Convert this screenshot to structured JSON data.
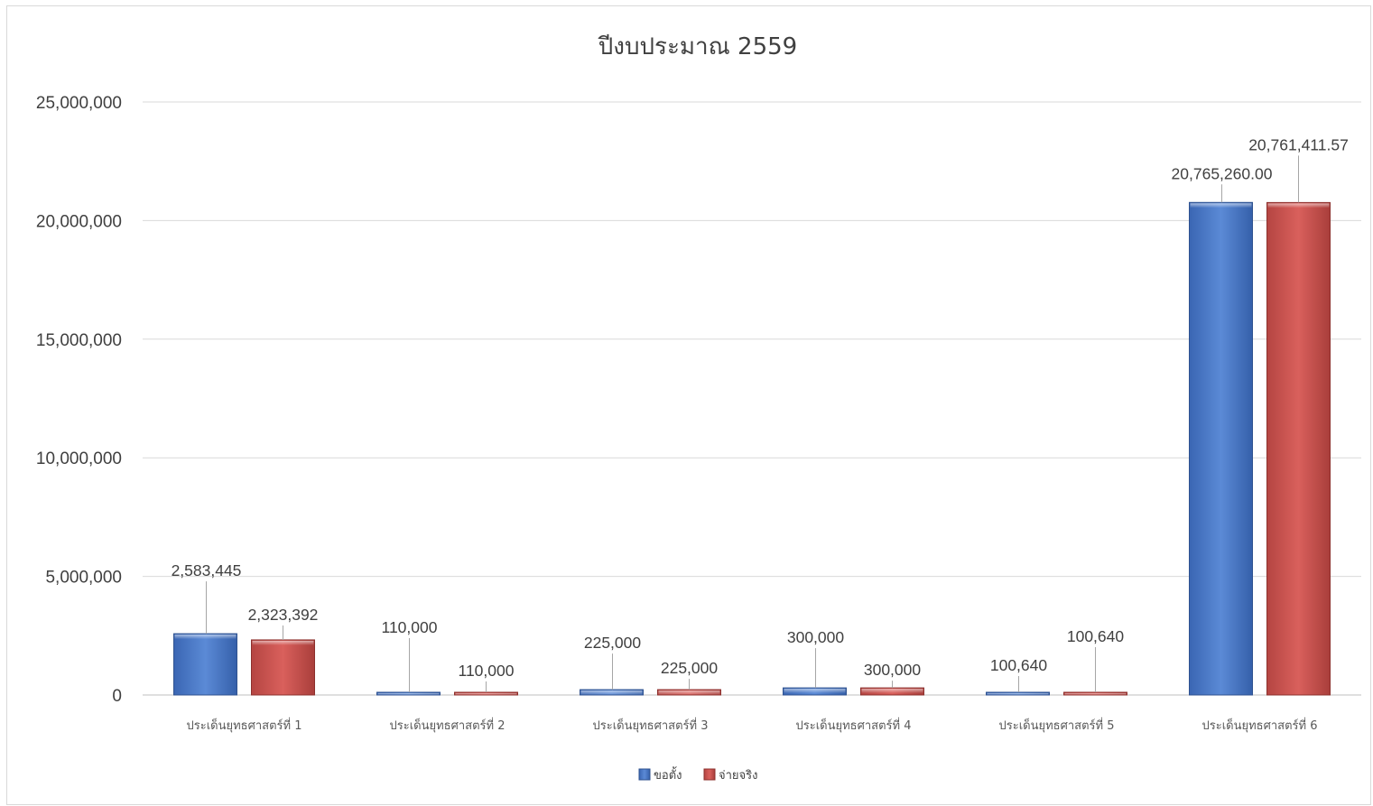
{
  "chart_data": {
    "type": "bar",
    "title": "ปีงบประมาณ 2559",
    "xlabel": "",
    "ylabel": "",
    "ylim": [
      0,
      25000000
    ],
    "yticks": [
      0,
      5000000,
      10000000,
      15000000,
      20000000,
      25000000
    ],
    "ytick_labels": [
      "0",
      "5,000,000",
      "10,000,000",
      "15,000,000",
      "20,000,000",
      "25,000,000"
    ],
    "categories": [
      "ประเด็นยุทธศาสตร์ที่ 1",
      "ประเด็นยุทธศาสตร์ที่ 2",
      "ประเด็นยุทธศาสตร์ที่ 3",
      "ประเด็นยุทธศาสตร์ที่ 4",
      "ประเด็นยุทธศาสตร์ที่ 5",
      "ประเด็นยุทธศาสตร์ที่ 6"
    ],
    "series": [
      {
        "name": "ขอตั้ง",
        "color": "#4472c4",
        "values": [
          2583445,
          110000,
          225000,
          300000,
          100640,
          20765260
        ],
        "labels": [
          "2,583,445",
          "110,000",
          "225,000",
          "300,000",
          "100,640",
          "20,765,260.00"
        ]
      },
      {
        "name": "จ่ายจริง",
        "color": "#c0504d",
        "values": [
          2323392,
          110000,
          225000,
          300000,
          100640,
          20761411.57
        ],
        "labels": [
          "2,323,392",
          "110,000",
          "225,000",
          "300,000",
          "100,640",
          "20,761,411.57"
        ]
      }
    ],
    "grid": true,
    "legend_position": "bottom"
  }
}
